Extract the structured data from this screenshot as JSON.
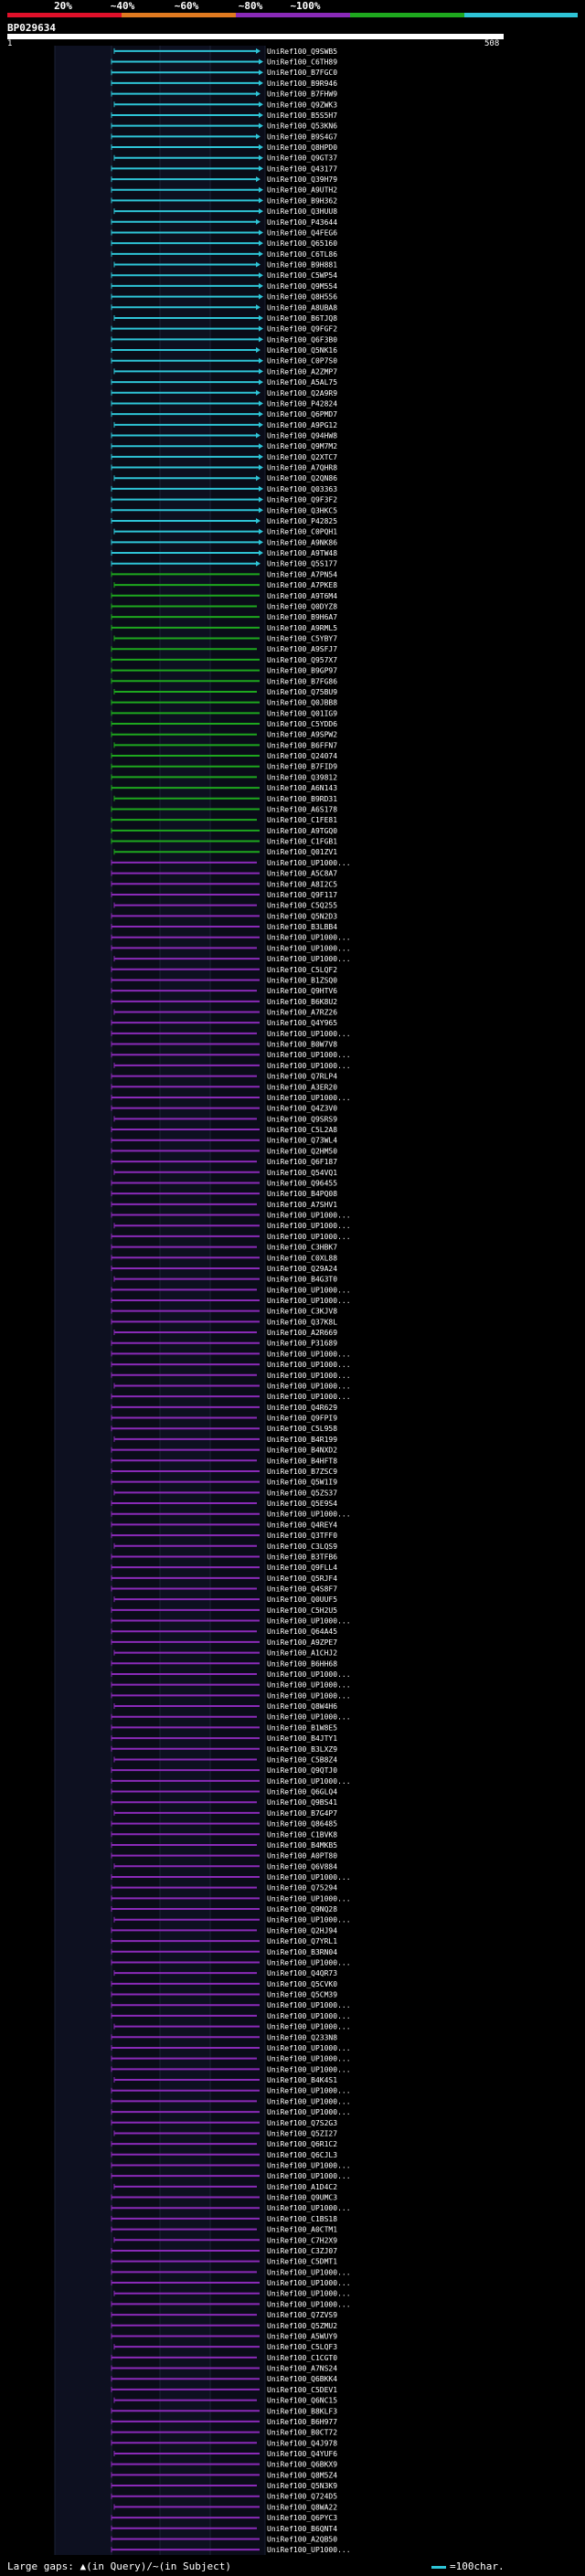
{
  "scale": {
    "labels": [
      "20%",
      "~40%",
      "~60%",
      "~80%",
      "~100%"
    ],
    "colors": [
      "#e0102a",
      "#e07a20",
      "#8a2ab8",
      "#1ea81e",
      "#2ec4d6"
    ]
  },
  "query": {
    "id": "BP029634",
    "start": "1",
    "end": "508"
  },
  "footer": {
    "gaps_text": "Large gaps: ▲(in Query)/~(in Subject)",
    "legend_text": "=100char."
  },
  "hits": {
    "cyan": [
      "UniRef100_Q9SWB5",
      "UniRef100_C6TH89",
      "UniRef100_B7FGC0",
      "UniRef100_B9R946",
      "UniRef100_B7FHW9",
      "UniRef100_Q9ZWK3",
      "UniRef100_B5S5H7",
      "UniRef100_Q53KN6",
      "UniRef100_B9S4G7",
      "UniRef100_Q8HPD0",
      "UniRef100_Q9GT37",
      "UniRef100_Q43177",
      "UniRef100_Q39H79",
      "UniRef100_A9UTH2",
      "UniRef100_B9H362",
      "UniRef100_Q3HUU8",
      "UniRef100_P43644",
      "UniRef100_Q4FEG6",
      "UniRef100_Q65160",
      "UniRef100_C6TL86",
      "UniRef100_B9H881",
      "UniRef100_C5WP54",
      "UniRef100_Q9M554",
      "UniRef100_Q8H556",
      "UniRef100_A8UBA8",
      "UniRef100_B6TJQ8",
      "UniRef100_Q9FGF2",
      "UniRef100_Q6F3B0",
      "UniRef100_Q5NK16",
      "UniRef100_C0P7S0",
      "UniRef100_A2ZMP7",
      "UniRef100_A5AL75",
      "UniRef100_Q2A9R9",
      "UniRef100_P42824",
      "UniRef100_Q6PMD7",
      "UniRef100_A9PG12",
      "UniRef100_Q94HW8",
      "UniRef100_Q9M7M2",
      "UniRef100_Q2XTC7",
      "UniRef100_A7QHR8",
      "UniRef100_Q2QN86",
      "UniRef100_Q03363",
      "UniRef100_Q9F3F2",
      "UniRef100_Q3HKC5",
      "UniRef100_P42825",
      "UniRef100_C0PQH1",
      "UniRef100_A9NK86",
      "UniRef100_A9TW48",
      "UniRef100_Q5S177"
    ],
    "green": [
      "UniRef100_A7PN54",
      "UniRef100_A7PKE8",
      "UniRef100_A9T6M4",
      "UniRef100_Q0DYZ8",
      "UniRef100_B9H6A7",
      "UniRef100_A9RML5",
      "UniRef100_C5YBY7",
      "UniRef100_A9SFJ7",
      "UniRef100_Q957X7",
      "UniRef100_B9GP97",
      "UniRef100_B7FG86",
      "UniRef100_Q75BU9",
      "UniRef100_Q0JBB8",
      "UniRef100_Q01IG9",
      "UniRef100_C5YDD6",
      "UniRef100_A9SPW2",
      "UniRef100_B6FFN7",
      "UniRef100_Q24074",
      "UniRef100_B7FID9",
      "UniRef100_Q39812",
      "UniRef100_A6N143",
      "UniRef100_B9RD31",
      "UniRef100_A6S178",
      "UniRef100_C1FE81",
      "UniRef100_A9TGQ0",
      "UniRef100_C1FGB1",
      "UniRef100_Q01ZV1"
    ],
    "magenta": [
      "UniRef100_UP1000...",
      "UniRef100_A5C8A7",
      "UniRef100_A8I2C5",
      "UniRef100_Q9F117",
      "UniRef100_C5Q255",
      "UniRef100_Q5N2D3",
      "UniRef100_B3LBB4",
      "UniRef100_UP1000...",
      "UniRef100_UP1000...",
      "UniRef100_UP1000...",
      "UniRef100_C5LQF2",
      "UniRef100_B1ZSQ0",
      "UniRef100_Q9HTV6",
      "UniRef100_B6K8U2",
      "UniRef100_A7RZ26",
      "UniRef100_Q4Y965",
      "UniRef100_UP1000...",
      "UniRef100_B0W7V8",
      "UniRef100_UP1000...",
      "UniRef100_UP1000...",
      "UniRef100_Q7RLP4",
      "UniRef100_A3ER20",
      "UniRef100_UP1000...",
      "UniRef100_Q4Z3V0",
      "UniRef100_Q9SRS9",
      "UniRef100_C5L2A8",
      "UniRef100_Q73WL4",
      "UniRef100_Q2HM50",
      "UniRef100_Q6F187",
      "UniRef100_Q54VQ1",
      "UniRef100_Q96455",
      "UniRef100_B4PQ08",
      "UniRef100_A7SHV1",
      "UniRef100_UP1000...",
      "UniRef100_UP1000...",
      "UniRef100_UP1000...",
      "UniRef100_C3HBK7",
      "UniRef100_C0XL88",
      "UniRef100_Q29A24",
      "UniRef100_B4G3T0",
      "UniRef100_UP1000...",
      "UniRef100_UP1000...",
      "UniRef100_C3KJV8",
      "UniRef100_Q37K8L",
      "UniRef100_A2R669",
      "UniRef100_P31689",
      "UniRef100_UP1000...",
      "UniRef100_UP1000...",
      "UniRef100_UP1000...",
      "UniRef100_UP1000...",
      "UniRef100_UP1000...",
      "UniRef100_Q4R629",
      "UniRef100_Q9FPI9",
      "UniRef100_C5L958",
      "UniRef100_B4R199",
      "UniRef100_B4NXD2",
      "UniRef100_B4HFT8",
      "UniRef100_B7ZSC9",
      "UniRef100_Q5W1I9",
      "UniRef100_Q5ZS37",
      "UniRef100_Q5E9S4",
      "UniRef100_UP1000...",
      "UniRef100_Q4REY4",
      "UniRef100_Q3TFF0",
      "UniRef100_C3LQS9",
      "UniRef100_B3TFB6",
      "UniRef100_Q9FLL4",
      "UniRef100_Q5RJF4",
      "UniRef100_Q4S8F7",
      "UniRef100_Q0UUF5",
      "UniRef100_C5H2U5",
      "UniRef100_UP1000...",
      "UniRef100_Q64A45",
      "UniRef100_A9ZPE7",
      "UniRef100_A1CHJ2",
      "UniRef100_B6HH68",
      "UniRef100_UP1000...",
      "UniRef100_UP1000...",
      "UniRef100_UP1000...",
      "UniRef100_Q8W4H6",
      "UniRef100_UP1000...",
      "UniRef100_B1W8E5",
      "UniRef100_B4JTY1",
      "UniRef100_B3LXZ9",
      "UniRef100_C5B8Z4",
      "UniRef100_Q9QTJ0",
      "UniRef100_UP1000...",
      "UniRef100_Q6GLQ4",
      "UniRef100_Q9BS41",
      "UniRef100_B7G4P7",
      "UniRef100_Q86485",
      "UniRef100_C1BVK8",
      "UniRef100_B4MKB5",
      "UniRef100_A0PT80",
      "UniRef100_Q6V884",
      "UniRef100_UP1000...",
      "UniRef100_Q75294",
      "UniRef100_UP1000...",
      "UniRef100_Q9NQ28",
      "UniRef100_UP1000...",
      "UniRef100_Q2HJ94",
      "UniRef100_Q7YRL1",
      "UniRef100_B3RN04",
      "UniRef100_UP1000...",
      "UniRef100_Q4QR73",
      "UniRef100_Q5CVK0",
      "UniRef100_Q5CM39",
      "UniRef100_UP1000...",
      "UniRef100_UP1000...",
      "UniRef100_UP1000...",
      "UniRef100_Q233N8",
      "UniRef100_UP1000...",
      "UniRef100_UP1000...",
      "UniRef100_UP1000...",
      "UniRef100_B4K4S1",
      "UniRef100_UP1000...",
      "UniRef100_UP1000...",
      "UniRef100_UP1000...",
      "UniRef100_Q7S2G3",
      "UniRef100_Q5ZI27",
      "UniRef100_Q6R1C2",
      "UniRef100_Q6CJL3",
      "UniRef100_UP1000...",
      "UniRef100_UP1000...",
      "UniRef100_A1D4C2",
      "UniRef100_Q9UMC3",
      "UniRef100_UP1000...",
      "UniRef100_C1BS18",
      "UniRef100_A0CTM1",
      "UniRef100_C7H2X9",
      "UniRef100_C3ZJ07",
      "UniRef100_C5DMT1",
      "UniRef100_UP1000...",
      "UniRef100_UP1000...",
      "UniRef100_UP1000...",
      "UniRef100_UP1000...",
      "UniRef100_Q7ZVS9",
      "UniRef100_Q5ZMU2",
      "UniRef100_A5WUY9",
      "UniRef100_C5LQF3",
      "UniRef100_C1CGT0",
      "UniRef100_A7NS24",
      "UniRef100_Q6BKK4",
      "UniRef100_C5DEV1",
      "UniRef100_Q6NC15",
      "UniRef100_B8KLF3",
      "UniRef100_B6H977",
      "UniRef100_B0CT72",
      "UniRef100_Q4J978",
      "UniRef100_Q4YUF6",
      "UniRef100_Q6BKX9",
      "UniRef100_Q8M5Z4",
      "UniRef100_Q5N3K9",
      "UniRef100_Q724D5",
      "UniRef100_Q8WA22",
      "UniRef100_Q6PYC3",
      "UniRef100_B6QNT4",
      "UniRef100_A2QB50",
      "UniRef100_UP1000..."
    ]
  }
}
